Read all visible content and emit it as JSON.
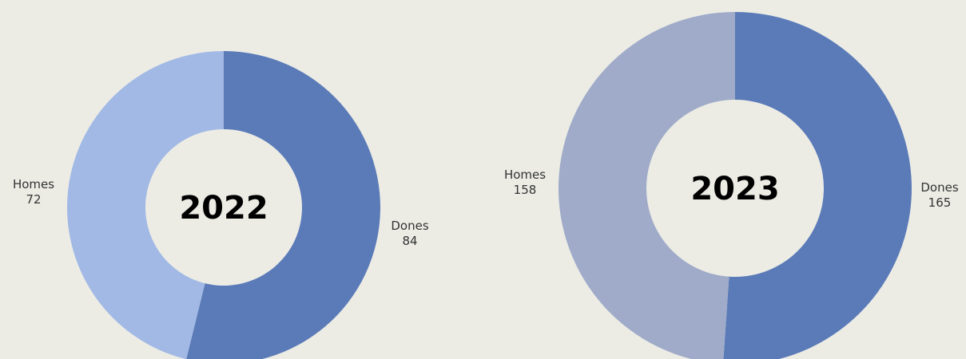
{
  "colors": {
    "background": "#ecece5",
    "center_fill": "#ecece5"
  },
  "chart_data": [
    {
      "type": "pie",
      "style": "donut",
      "center_label": "2022",
      "slices": [
        {
          "label": "Dones",
          "value": 84,
          "color": "#5b7bb8"
        },
        {
          "label": "Homes",
          "value": 72,
          "color": "#a2b9e5"
        }
      ]
    },
    {
      "type": "pie",
      "style": "donut",
      "center_label": "2023",
      "slices": [
        {
          "label": "Dones",
          "value": 165,
          "color": "#5b7bb8"
        },
        {
          "label": "Homes",
          "value": 158,
          "color": "#9fabc8"
        }
      ]
    }
  ]
}
